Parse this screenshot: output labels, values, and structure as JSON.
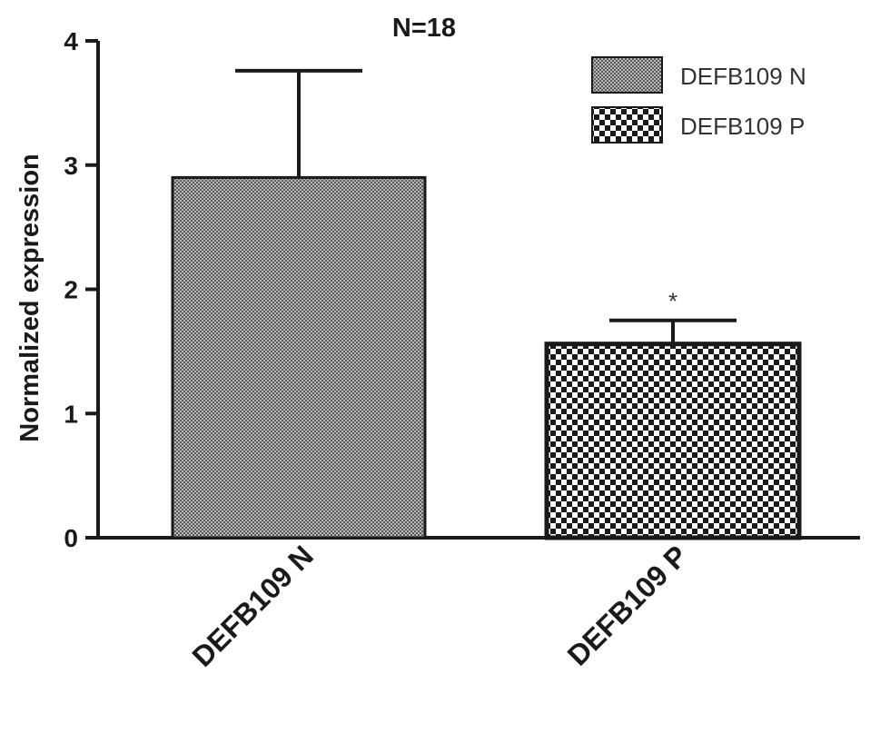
{
  "chart_data": {
    "type": "bar",
    "title": "N=18",
    "ylabel": "Normalized expression",
    "xlabel": "",
    "ylim": [
      0,
      4
    ],
    "yticks": [
      "0",
      "1",
      "2",
      "3",
      "4"
    ],
    "categories": [
      "DEFB109 N",
      "DEFB109 P"
    ],
    "values": [
      2.9,
      1.56
    ],
    "errors": [
      0.86,
      0.19
    ],
    "significance": [
      "",
      "*"
    ],
    "legend": {
      "placement": "top-right",
      "entries": [
        "DEFB109 N",
        "DEFB109 P"
      ]
    },
    "patterns": [
      "fine-gray-crosshatch",
      "coarse-checkerboard"
    ],
    "grid": false
  },
  "colors": {
    "axis": "#1a1a1a",
    "bar_n_fill": "#8a8a8a",
    "bar_p_fill": "#ffffff",
    "text": "#1a1a1a"
  }
}
